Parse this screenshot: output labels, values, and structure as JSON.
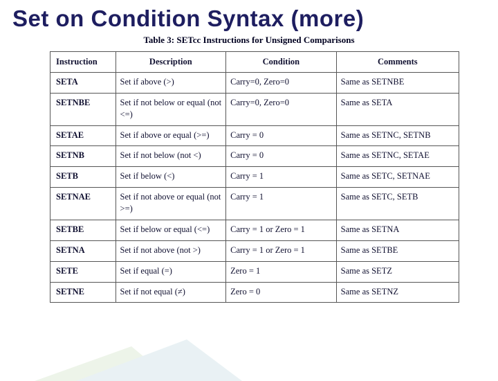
{
  "title": "Set on Condition Syntax (more)",
  "caption": "Table 3: SETcc Instructions for Unsigned Comparisons",
  "headers": [
    "Instruction",
    "Description",
    "Condition",
    "Comments"
  ],
  "rows": [
    {
      "instr": "SETA",
      "desc": "Set if above (>)",
      "cond": "Carry=0, Zero=0",
      "comm": "Same as SETNBE"
    },
    {
      "instr": "SETNBE",
      "desc": "Set if not below or equal (not <=)",
      "cond": "Carry=0, Zero=0",
      "comm": "Same as SETA"
    },
    {
      "instr": "SETAE",
      "desc": "Set if above or equal (>=)",
      "cond": "Carry = 0",
      "comm": "Same as SETNC, SETNB"
    },
    {
      "instr": "SETNB",
      "desc": "Set if not below (not <)",
      "cond": "Carry = 0",
      "comm": "Same as SETNC, SETAE"
    },
    {
      "instr": "SETB",
      "desc": "Set if below (<)",
      "cond": "Carry = 1",
      "comm": "Same as SETC, SETNAE"
    },
    {
      "instr": "SETNAE",
      "desc": "Set if not above or equal (not >=)",
      "cond": "Carry = 1",
      "comm": "Same as SETC, SETB"
    },
    {
      "instr": "SETBE",
      "desc": "Set if below or equal (<=)",
      "cond": "Carry = 1 or Zero = 1",
      "comm": "Same as SETNA"
    },
    {
      "instr": "SETNA",
      "desc": "Set if not above (not >)",
      "cond": "Carry = 1 or Zero = 1",
      "comm": "Same as SETBE"
    },
    {
      "instr": "SETE",
      "desc": "Set if equal (=)",
      "cond": "Zero = 1",
      "comm": "Same as SETZ"
    },
    {
      "instr": "SETNE",
      "desc": "Set if not equal (≠)",
      "cond": "Zero = 0",
      "comm": "Same as SETNZ"
    }
  ],
  "colors": {
    "title": "#1e1e60",
    "text": "#101030",
    "border": "#555555",
    "deco1": "#d9e7d0",
    "deco2": "#cfe2e8"
  }
}
